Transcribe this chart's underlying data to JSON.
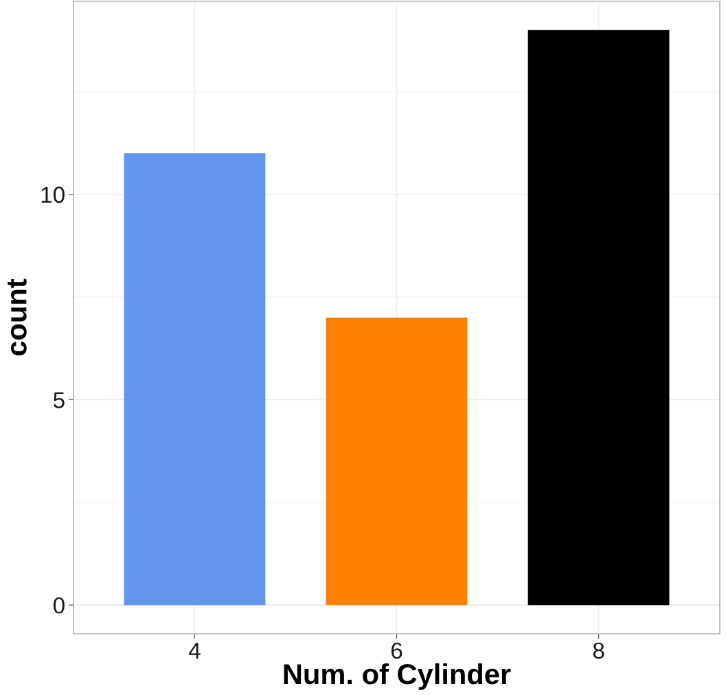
{
  "chart_data": {
    "type": "bar",
    "xlabel": "Num. of Cylinder",
    "ylabel": "count",
    "categories": [
      "4",
      "6",
      "8"
    ],
    "values": [
      11,
      7,
      14
    ],
    "colors": [
      "#6495ed",
      "#ff7f00",
      "#000000"
    ],
    "ylim": [
      -0.7,
      14.7
    ],
    "yticks": [
      0,
      5,
      10
    ],
    "grid": true
  }
}
